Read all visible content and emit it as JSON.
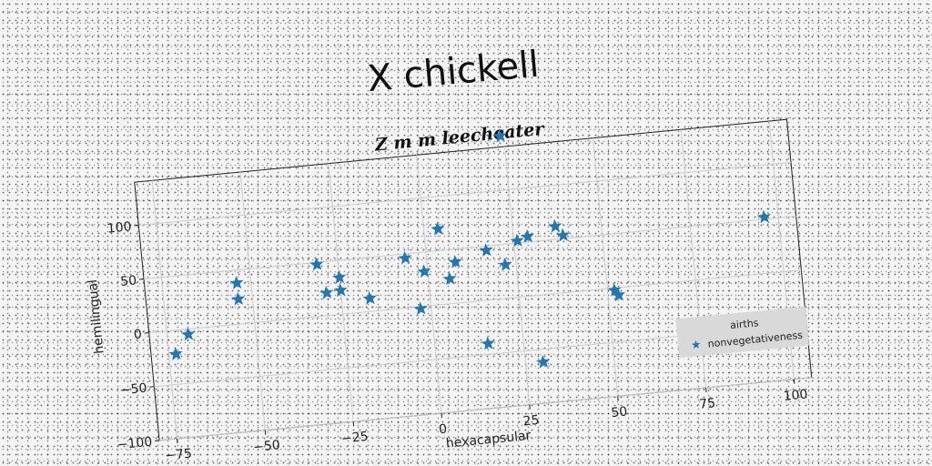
{
  "chart_data": {
    "type": "scatter",
    "title": "X chickell",
    "subtitle": "Z m m leecheater",
    "xlabel": "hexacapsular",
    "ylabel": "hemilingual",
    "xlim": [
      -80,
      105
    ],
    "ylim": [
      -100,
      140
    ],
    "xticks": [
      -75,
      -50,
      -25,
      0,
      25,
      50,
      75,
      100
    ],
    "yticks": [
      -100,
      -50,
      0,
      50,
      100
    ],
    "grid": true,
    "legend": {
      "title": "airths",
      "placement": "lower-right"
    },
    "marker": "star",
    "colors": {
      "series": "#1f77b4",
      "grid": "#cccccc",
      "legend_bg": "#d9d9d9"
    },
    "series": [
      {
        "name": "nonvegetativeness",
        "points": [
          {
            "x": -73,
            "y": -22
          },
          {
            "x": -69,
            "y": -5
          },
          {
            "x": -54,
            "y": 38
          },
          {
            "x": -54,
            "y": 23
          },
          {
            "x": -31,
            "y": 48
          },
          {
            "x": -29,
            "y": 21
          },
          {
            "x": -25,
            "y": 34
          },
          {
            "x": -25,
            "y": 22
          },
          {
            "x": -17,
            "y": 12
          },
          {
            "x": -6,
            "y": 46
          },
          {
            "x": -3,
            "y": -2
          },
          {
            "x": -1,
            "y": 32
          },
          {
            "x": 4,
            "y": 70
          },
          {
            "x": 6,
            "y": 23
          },
          {
            "x": 8,
            "y": 38
          },
          {
            "x": 15,
            "y": -40
          },
          {
            "x": 17,
            "y": 46
          },
          {
            "x": 22,
            "y": 31
          },
          {
            "x": 24,
            "y": 150
          },
          {
            "x": 26,
            "y": 52
          },
          {
            "x": 29,
            "y": 55
          },
          {
            "x": 30,
            "y": -62
          },
          {
            "x": 37,
            "y": 62
          },
          {
            "x": 39,
            "y": 53
          },
          {
            "x": 52,
            "y": -2
          },
          {
            "x": 53,
            "y": -7
          },
          {
            "x": 96,
            "y": 52
          }
        ]
      }
    ]
  }
}
